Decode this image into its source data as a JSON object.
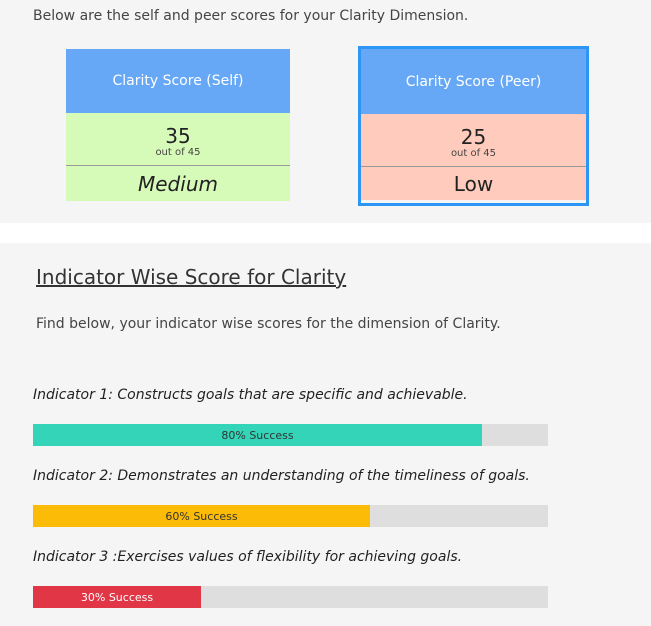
{
  "intro_text": "Below are the self and peer scores for your Clarity Dimension.",
  "cards": {
    "self": {
      "title": "Clarity Score (Self)",
      "score": "35",
      "out_of": "out of 45",
      "level": "Medium",
      "header_color": "#66a8f5",
      "body_color": "#d6fbb9"
    },
    "peer": {
      "title": "Clarity Score (Peer)",
      "score": "25",
      "out_of": "out of 45",
      "level": "Low",
      "header_color": "#66a8f5",
      "body_color": "#ffcbbc",
      "border_color": "#2b96f3"
    }
  },
  "section": {
    "title": "Indicator Wise Score for Clarity",
    "description": "Find below, your indicator wise scores for the dimension of Clarity."
  },
  "indicators": [
    {
      "label": "Indicator 1: Constructs goals that are specific and achievable.",
      "percent": 80,
      "bar_text": "80% Success",
      "color": "#33d4b7",
      "text_color": "#333333"
    },
    {
      "label": "Indicator 2: Demonstrates an understanding of the timeliness of goals.",
      "percent": 60,
      "bar_text": "60% Success",
      "color": "#fcbb06",
      "text_color": "#333333"
    },
    {
      "label": "Indicator 3 :Exercises values of flexibility for achieving goals.",
      "percent": 30,
      "bar_text": "30% Success",
      "color": "#e03645",
      "text_color": "#ffffff"
    }
  ]
}
